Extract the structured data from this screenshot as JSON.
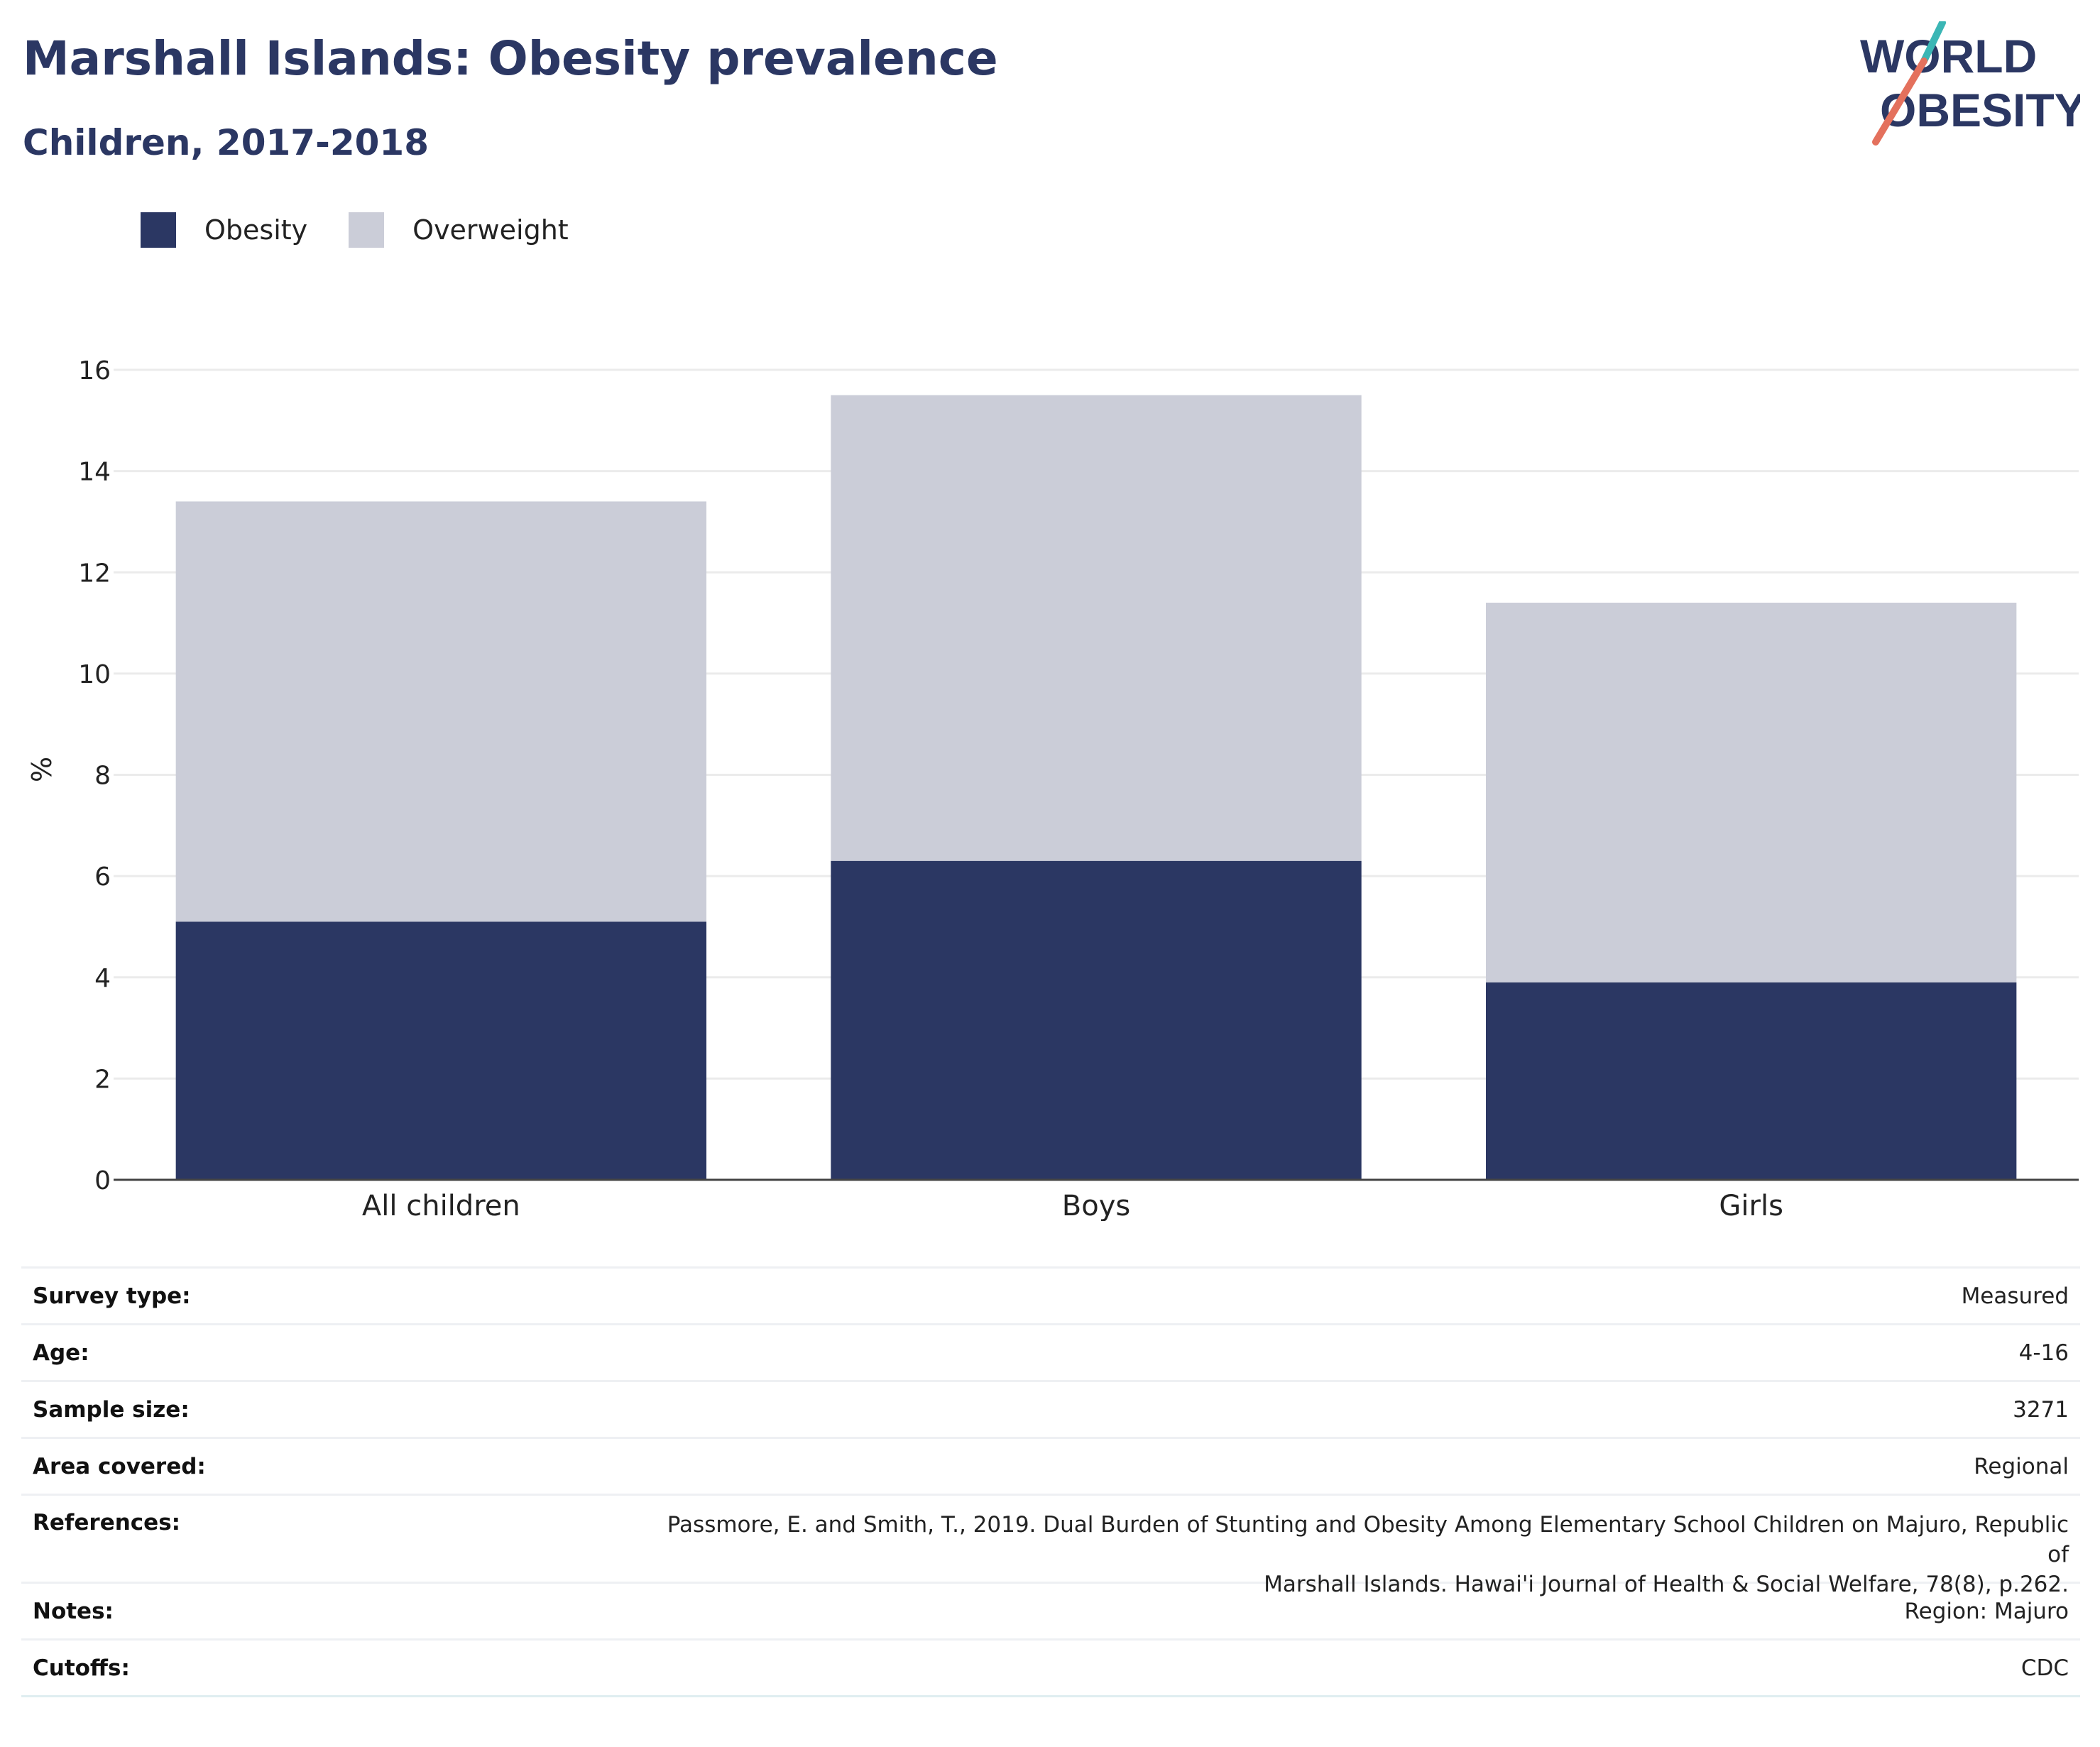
{
  "header": {
    "title": "Marshall Islands: Obesity prevalence",
    "subtitle": "Children, 2017-2018"
  },
  "logo": {
    "line1": "WORLD",
    "line2": "OBESITY"
  },
  "colors": {
    "obesity": "#2b3763",
    "overweight": "#cbcdd8",
    "title": "#2b3763",
    "logo_teal": "#3bb6b5",
    "logo_coral": "#e4715d"
  },
  "legend": {
    "items": [
      {
        "label": "Obesity"
      },
      {
        "label": "Overweight"
      }
    ],
    "placement": "top-left"
  },
  "chart_data": {
    "type": "bar",
    "stacked": true,
    "categories": [
      "All children",
      "Boys",
      "Girls"
    ],
    "series": [
      {
        "name": "Obesity",
        "values": [
          5.1,
          6.3,
          3.9
        ]
      },
      {
        "name": "Overweight",
        "values": [
          8.3,
          9.2,
          7.5
        ]
      }
    ],
    "title": "Marshall Islands: Obesity prevalence",
    "subtitle": "Children, 2017-2018",
    "xlabel": "",
    "ylabel": "%",
    "ylim": [
      0,
      16
    ],
    "yticks": [
      0,
      2,
      4,
      6,
      8,
      10,
      12,
      14,
      16
    ],
    "grid": true,
    "legend": "top-left"
  },
  "info": {
    "rows": [
      {
        "key": "Survey type:",
        "value": "Measured"
      },
      {
        "key": "Age:",
        "value": "4-16"
      },
      {
        "key": "Sample size:",
        "value": "3271"
      },
      {
        "key": "Area covered:",
        "value": "Regional"
      },
      {
        "key": "References:",
        "value_line1": "Passmore, E. and Smith, T., 2019. Dual Burden of Stunting and Obesity Among Elementary School Children on Majuro, Republic of",
        "value_line2": "Marshall Islands. Hawai'i Journal of Health & Social Welfare, 78(8), p.262."
      },
      {
        "key": "Notes:",
        "value": "Region: Majuro"
      },
      {
        "key": "Cutoffs:",
        "value": "CDC"
      }
    ]
  }
}
